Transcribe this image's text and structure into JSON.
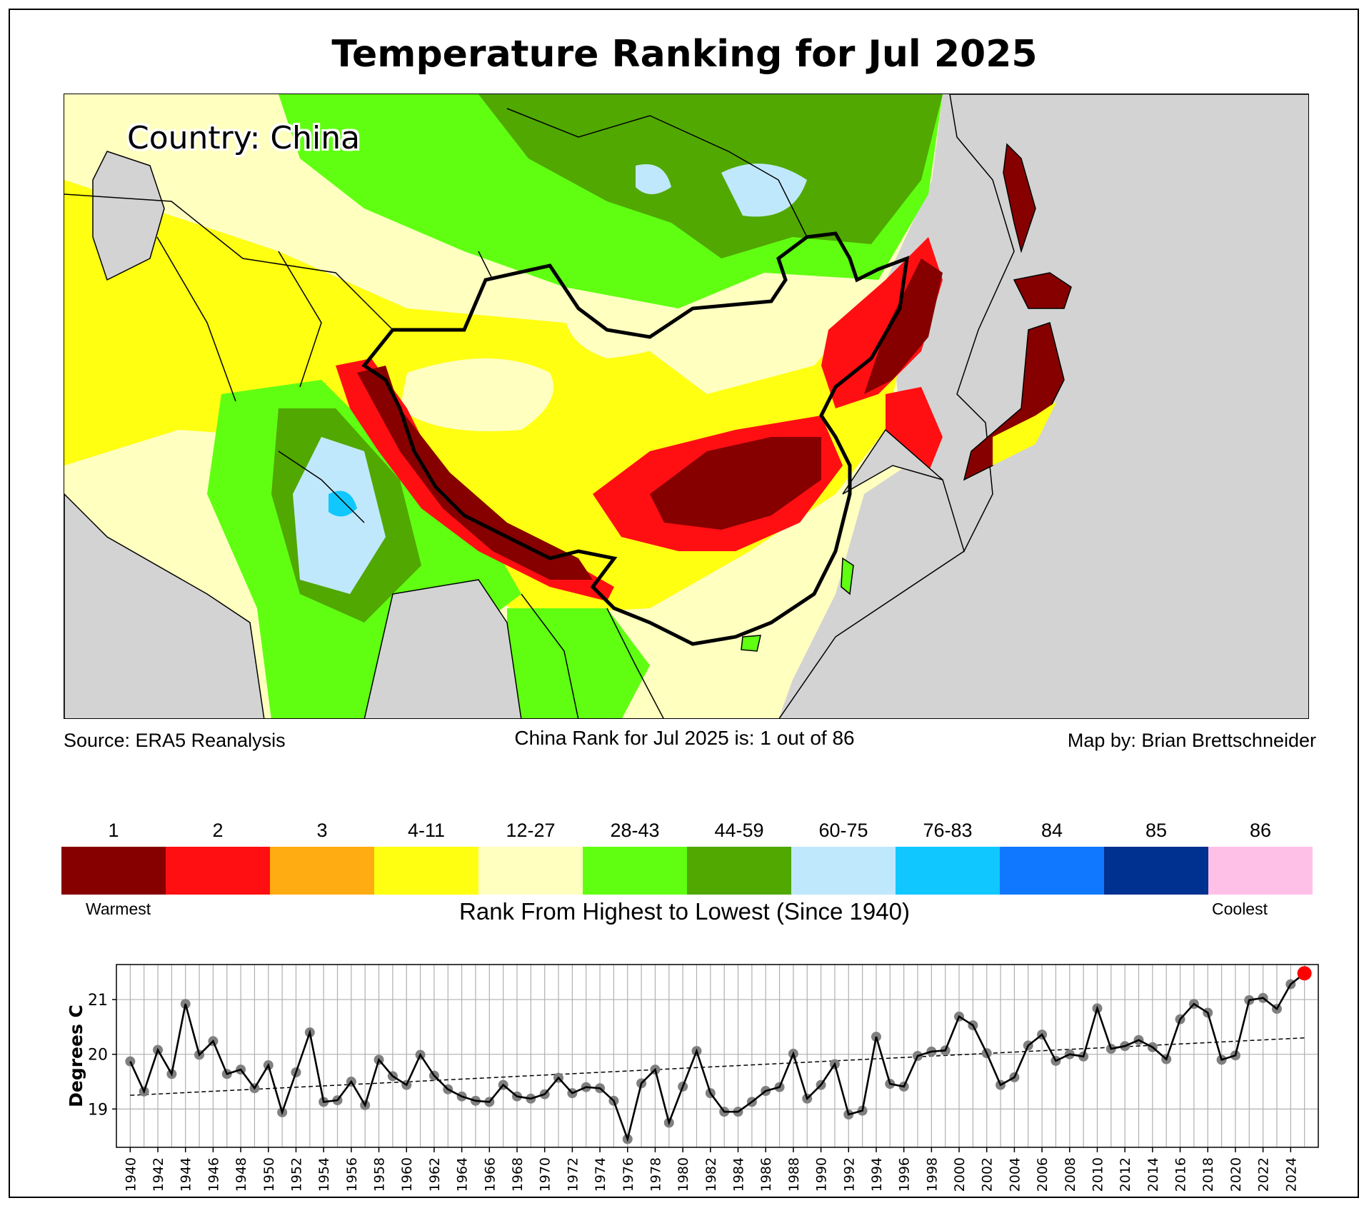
{
  "title": "Temperature Ranking for Jul 2025",
  "map": {
    "country_label": "Country: China",
    "source": "Source: ERA5 Reanalysis",
    "rank_statement": "China Rank for Jul 2025 is: 1 out of 86",
    "credit": "Map by: Brian Brettschneider",
    "ocean_color": "#d3d3d3"
  },
  "legend": {
    "title": "Rank From Highest to Lowest (Since 1940)",
    "warmest_label": "Warmest",
    "coolest_label": "Coolest",
    "bins": [
      {
        "label": "1",
        "color": "#870000"
      },
      {
        "label": "2",
        "color": "#ff0f12"
      },
      {
        "label": "3",
        "color": "#ffab12"
      },
      {
        "label": "4-11",
        "color": "#ffff12"
      },
      {
        "label": "12-27",
        "color": "#ffffc0"
      },
      {
        "label": "28-43",
        "color": "#60ff12"
      },
      {
        "label": "44-59",
        "color": "#50a800"
      },
      {
        "label": "60-75",
        "color": "#c0e8fc"
      },
      {
        "label": "76-83",
        "color": "#10c8ff"
      },
      {
        "label": "84",
        "color": "#1078ff"
      },
      {
        "label": "85",
        "color": "#003090"
      },
      {
        "label": "86",
        "color": "#ffc0e8"
      }
    ]
  },
  "chart_data": {
    "type": "line",
    "title": "",
    "xlabel": "",
    "ylabel": "Degrees C",
    "ylim": [
      18.3,
      21.64
    ],
    "xlim": [
      1939.0,
      2026.0
    ],
    "yticks": [
      19,
      20,
      21
    ],
    "grid": true,
    "x": [
      1940,
      1941,
      1942,
      1943,
      1944,
      1945,
      1946,
      1947,
      1948,
      1949,
      1950,
      1951,
      1952,
      1953,
      1954,
      1955,
      1956,
      1957,
      1958,
      1959,
      1960,
      1961,
      1962,
      1963,
      1964,
      1965,
      1966,
      1967,
      1968,
      1969,
      1970,
      1971,
      1972,
      1973,
      1974,
      1975,
      1976,
      1977,
      1978,
      1979,
      1980,
      1981,
      1982,
      1983,
      1984,
      1985,
      1986,
      1987,
      1988,
      1989,
      1990,
      1991,
      1992,
      1993,
      1994,
      1995,
      1996,
      1997,
      1998,
      1999,
      2000,
      2001,
      2002,
      2003,
      2004,
      2005,
      2006,
      2007,
      2008,
      2009,
      2010,
      2011,
      2012,
      2013,
      2014,
      2015,
      2016,
      2017,
      2018,
      2019,
      2020,
      2021,
      2022,
      2023,
      2024,
      2025
    ],
    "xtick_labels": [
      "1940",
      "1942",
      "1944",
      "1946",
      "1948",
      "1950",
      "1952",
      "1954",
      "1956",
      "1958",
      "1960",
      "1962",
      "1964",
      "1966",
      "1968",
      "1970",
      "1972",
      "1974",
      "1976",
      "1978",
      "1980",
      "1982",
      "1984",
      "1986",
      "1988",
      "1990",
      "1992",
      "1994",
      "1996",
      "1998",
      "2000",
      "2002",
      "2004",
      "2006",
      "2008",
      "2010",
      "2012",
      "2014",
      "2016",
      "2018",
      "2020",
      "2022",
      "2024"
    ],
    "series": [
      {
        "name": "July mean temperature",
        "values": [
          19.87,
          19.32,
          20.08,
          19.64,
          20.92,
          19.99,
          20.24,
          19.64,
          19.72,
          19.38,
          19.8,
          18.94,
          19.67,
          20.4,
          19.13,
          19.16,
          19.5,
          19.07,
          19.9,
          19.6,
          19.44,
          19.99,
          19.61,
          19.36,
          19.23,
          19.15,
          19.13,
          19.44,
          19.23,
          19.19,
          19.27,
          19.57,
          19.29,
          19.4,
          19.38,
          19.15,
          18.45,
          19.47,
          19.72,
          18.75,
          19.41,
          20.06,
          19.29,
          18.95,
          18.95,
          19.13,
          19.33,
          19.4,
          20.01,
          19.19,
          19.44,
          19.82,
          18.9,
          18.97,
          20.32,
          19.46,
          19.41,
          19.97,
          20.05,
          20.07,
          20.69,
          20.53,
          20.02,
          19.44,
          19.58,
          20.16,
          20.36,
          19.88,
          20.0,
          19.96,
          20.84,
          20.1,
          20.15,
          20.26,
          20.13,
          19.91,
          20.64,
          20.92,
          20.76,
          19.9,
          19.98,
          20.99,
          21.03,
          20.83,
          21.28,
          21.48
        ],
        "marker_color": "#808080",
        "line_color": "#000000"
      },
      {
        "name": "Linear trend",
        "x": [
          1940,
          2025
        ],
        "values": [
          19.25,
          20.3
        ],
        "style": "dashed",
        "line_color": "#000000"
      }
    ],
    "highlight": {
      "x": 2025,
      "value": 21.48,
      "color": "#ff0000"
    }
  }
}
